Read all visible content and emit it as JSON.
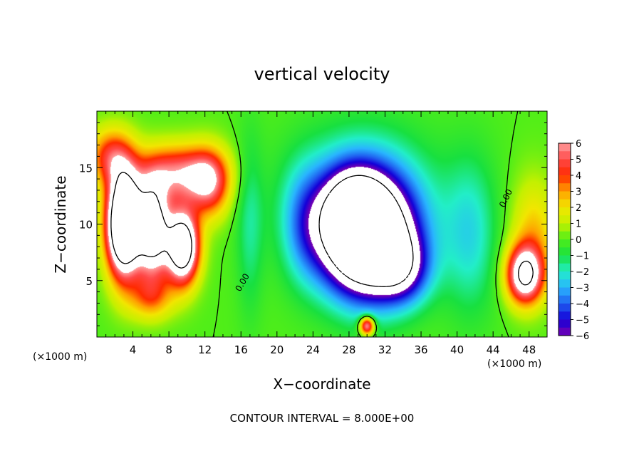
{
  "chart_data": {
    "type": "heatmap",
    "title": "vertical velocity",
    "xlabel": "X−coordinate",
    "ylabel": "Z−coordinate",
    "x_unit_left": "(×1000 m)",
    "x_unit_right": "(×1000 m)",
    "xlim": [
      0,
      50
    ],
    "ylim": [
      0,
      20
    ],
    "x_ticks": [
      4,
      8,
      12,
      16,
      20,
      24,
      28,
      32,
      36,
      40,
      44,
      48
    ],
    "y_ticks": [
      5,
      10,
      15
    ],
    "colorbar": {
      "min": -6,
      "max": 6,
      "ticks": [
        6,
        5,
        4,
        3,
        2,
        1,
        0,
        -1,
        -2,
        -3,
        -4,
        -5,
        -6
      ],
      "tick_labels": [
        "6",
        "5",
        "4",
        "3",
        "2",
        "1",
        "0",
        "−1",
        "−2",
        "−3",
        "−4",
        "−5",
        "−6"
      ],
      "colors": [
        "#7a00b0",
        "#1400d8",
        "#2060f0",
        "#29b5ff",
        "#22eec8",
        "#18e040",
        "#50ee18",
        "#c4f000",
        "#f2e600",
        "#ffa000",
        "#ff2a00",
        "#ff4848",
        "#ffa0a0"
      ]
    },
    "contour_labels": [
      "0.00",
      "0.00"
    ],
    "caption": "CONTOUR INTERVAL = 8.000E+00",
    "features": [
      {
        "x": 3.0,
        "z": 10.0,
        "sx": 1.9,
        "sz": 4.5,
        "w": 14
      },
      {
        "x": 6.2,
        "z": 9.5,
        "sx": 1.8,
        "sz": 4.0,
        "w": 10
      },
      {
        "x": 9.5,
        "z": 8.0,
        "sx": 1.8,
        "sz": 3.2,
        "w": 11
      },
      {
        "x": 9.0,
        "z": 14.5,
        "sx": 4.5,
        "sz": 2.5,
        "w": 5.5
      },
      {
        "x": 12.5,
        "z": 13.5,
        "sx": 2.2,
        "sz": 3.0,
        "w": 4.5
      },
      {
        "x": 1.5,
        "z": 16.0,
        "sx": 2.5,
        "sz": 2.5,
        "w": 4
      },
      {
        "x": 6.0,
        "z": 3.5,
        "sx": 2.5,
        "sz": 2.0,
        "w": 3
      },
      {
        "x": 17.0,
        "z": 10.0,
        "sx": 1.5,
        "sz": 8.0,
        "w": -1.5
      },
      {
        "x": 30.0,
        "z": 8.5,
        "sx": 5.0,
        "sz": 5.0,
        "w": -12
      },
      {
        "x": 28.5,
        "z": 11.0,
        "sx": 3.2,
        "sz": 3.5,
        "w": -5
      },
      {
        "x": 29.5,
        "z": 12.0,
        "sx": 7.5,
        "sz": 6.0,
        "w": -3.5
      },
      {
        "x": 34.0,
        "z": 6.0,
        "sx": 3.0,
        "sz": 3.0,
        "w": -4
      },
      {
        "x": 23.0,
        "z": 10.0,
        "sx": 2.5,
        "sz": 5.0,
        "w": -2
      },
      {
        "x": 41.5,
        "z": 9.0,
        "sx": 3.0,
        "sz": 7.0,
        "w": -2.2
      },
      {
        "x": 30.0,
        "z": 1.0,
        "sx": 0.8,
        "sz": 0.8,
        "w": 7
      },
      {
        "x": 47.5,
        "z": 5.5,
        "sx": 2.0,
        "sz": 2.5,
        "w": 8
      },
      {
        "x": 48.5,
        "z": 9.0,
        "sx": 2.5,
        "sz": 5.0,
        "w": 2.5
      }
    ]
  }
}
